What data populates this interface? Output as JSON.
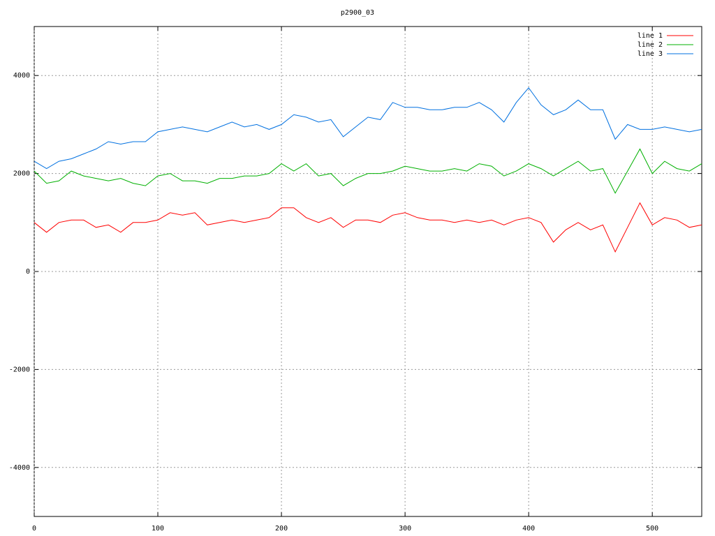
{
  "chart_data": {
    "type": "line",
    "title": "p2900_03",
    "x": [
      0,
      10,
      20,
      30,
      40,
      50,
      60,
      70,
      80,
      90,
      100,
      110,
      120,
      130,
      140,
      150,
      160,
      170,
      180,
      190,
      200,
      210,
      220,
      230,
      240,
      250,
      260,
      270,
      280,
      290,
      300,
      310,
      320,
      330,
      340,
      350,
      360,
      370,
      380,
      390,
      400,
      410,
      420,
      430,
      440,
      450,
      460,
      470,
      480,
      490,
      500,
      510,
      520,
      530,
      540
    ],
    "series": [
      {
        "name": "line 1",
        "color": "#ff0000",
        "values": [
          1000,
          800,
          1000,
          1050,
          1050,
          900,
          950,
          800,
          1000,
          1000,
          1050,
          1200,
          1150,
          1200,
          950,
          1000,
          1050,
          1000,
          1050,
          1100,
          1300,
          1300,
          1100,
          1000,
          1100,
          900,
          1050,
          1050,
          1000,
          1150,
          1200,
          1100,
          1050,
          1050,
          1000,
          1050,
          1000,
          1050,
          950,
          1050,
          1100,
          1000,
          600,
          850,
          1000,
          850,
          950,
          400,
          900,
          1400,
          950,
          1100,
          1050,
          900,
          950
        ]
      },
      {
        "name": "line 2",
        "color": "#00b000",
        "values": [
          2050,
          1800,
          1850,
          2050,
          1950,
          1900,
          1850,
          1900,
          1800,
          1750,
          1950,
          2000,
          1850,
          1850,
          1800,
          1900,
          1900,
          1950,
          1950,
          2000,
          2200,
          2050,
          2200,
          1950,
          2000,
          1750,
          1900,
          2000,
          2000,
          2050,
          2150,
          2100,
          2050,
          2050,
          2100,
          2050,
          2200,
          2150,
          1950,
          2050,
          2200,
          2100,
          1950,
          2100,
          2250,
          2050,
          2100,
          1600,
          2050,
          2500,
          2000,
          2250,
          2100,
          2050,
          2200
        ]
      },
      {
        "name": "line 3",
        "color": "#0070e0",
        "values": [
          2250,
          2100,
          2250,
          2300,
          2400,
          2500,
          2650,
          2600,
          2650,
          2650,
          2850,
          2900,
          2950,
          2900,
          2850,
          2950,
          3050,
          2950,
          3000,
          2900,
          3000,
          3200,
          3150,
          3050,
          3100,
          2750,
          2950,
          3150,
          3100,
          3450,
          3350,
          3350,
          3300,
          3300,
          3350,
          3350,
          3450,
          3300,
          3050,
          3450,
          3750,
          3400,
          3200,
          3300,
          3500,
          3300,
          3300,
          2700,
          3000,
          2900,
          2900,
          2950,
          2900,
          2850,
          2900
        ]
      }
    ],
    "xlim": [
      0,
      540
    ],
    "xticks": [
      0,
      100,
      200,
      300,
      400,
      500
    ],
    "ylim": [
      -5000,
      5000
    ],
    "yticks": [
      -4000,
      -2000,
      0,
      2000,
      4000
    ],
    "grid": true,
    "legend": "top right"
  }
}
